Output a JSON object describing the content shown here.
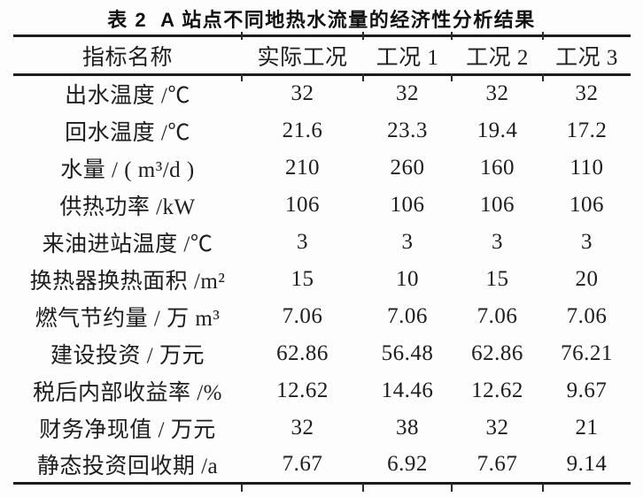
{
  "title": {
    "label": "表 2",
    "text": "A 站点不同地热水流量的经济性分析结果"
  },
  "table": {
    "columns": [
      "指标名称",
      "实际工况",
      "工况 1",
      "工况 2",
      "工况 3"
    ],
    "rows": [
      {
        "label": "出水温度 /℃",
        "values": [
          "32",
          "32",
          "32",
          "32"
        ]
      },
      {
        "label": "回水温度 /℃",
        "values": [
          "21.6",
          "23.3",
          "19.4",
          "17.2"
        ]
      },
      {
        "label": "水量 / ( m³/d )",
        "values": [
          "210",
          "260",
          "160",
          "110"
        ]
      },
      {
        "label": "供热功率 /kW",
        "values": [
          "106",
          "106",
          "106",
          "106"
        ]
      },
      {
        "label": "来油进站温度 /℃",
        "values": [
          "3",
          "3",
          "3",
          "3"
        ]
      },
      {
        "label": "换热器换热面积 /m²",
        "values": [
          "15",
          "10",
          "15",
          "20"
        ]
      },
      {
        "label": "燃气节约量 / 万 m³",
        "values": [
          "7.06",
          "7.06",
          "7.06",
          "7.06"
        ]
      },
      {
        "label": "建设投资 / 万元",
        "values": [
          "62.86",
          "56.48",
          "62.86",
          "76.21"
        ]
      },
      {
        "label": "税后内部收益率 /%",
        "values": [
          "12.62",
          "14.46",
          "12.62",
          "9.67"
        ]
      },
      {
        "label": "财务净现值 / 万元",
        "values": [
          "32",
          "38",
          "32",
          "21"
        ]
      },
      {
        "label": "静态投资回收期 /a",
        "values": [
          "7.67",
          "6.92",
          "7.67",
          "9.14"
        ]
      }
    ]
  },
  "colors": {
    "rule": "#1c1c1c",
    "text": "#1d1d1d",
    "background": "#fdfdfd"
  }
}
